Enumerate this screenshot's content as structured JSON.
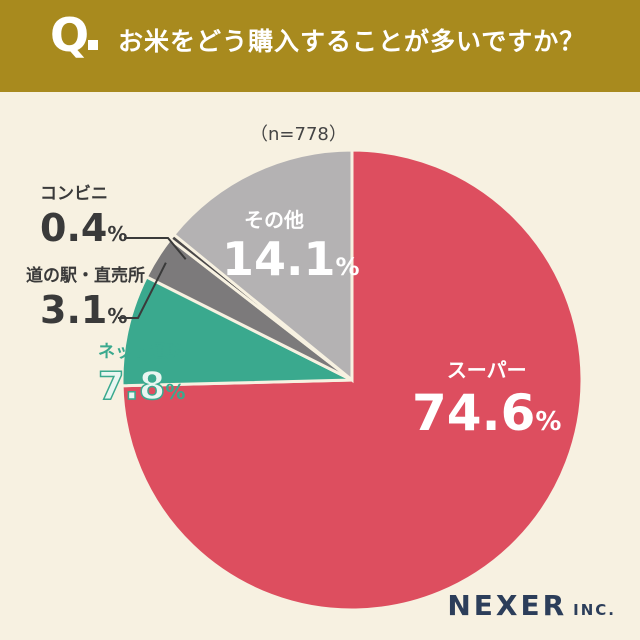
{
  "header": {
    "q_letter": "Q",
    "question": "お米をどう購入することが多いですか？"
  },
  "sample_size": "（n=778）",
  "brand": {
    "name": "NEXER",
    "suffix": "INC."
  },
  "colors": {
    "header_bg": "#a88a1e",
    "background": "#f7f1e1",
    "super": "#dd4e5f",
    "other": "#b4b2b3",
    "michinoeki": "#7c7a7b",
    "convenience": "#4a4849",
    "net": "#3aa98e"
  },
  "chart_data": {
    "type": "pie",
    "start": "12 o'clock",
    "direction": "clockwise",
    "unit": "%",
    "slices": [
      {
        "label": "スーパー",
        "value": 74.6,
        "display": "74.6",
        "color": "#dd4e5f"
      },
      {
        "label": "ネット通販",
        "value": 7.8,
        "display": "7.8",
        "color": "#3aa98e"
      },
      {
        "label": "道の駅・直売所",
        "value": 3.1,
        "display": "3.1",
        "color": "#7c7a7b"
      },
      {
        "label": "コンビニ",
        "value": 0.4,
        "display": "0.4",
        "color": "#4a4849"
      },
      {
        "label": "その他",
        "value": 14.1,
        "display": "14.1",
        "color": "#b4b2b3"
      }
    ]
  }
}
